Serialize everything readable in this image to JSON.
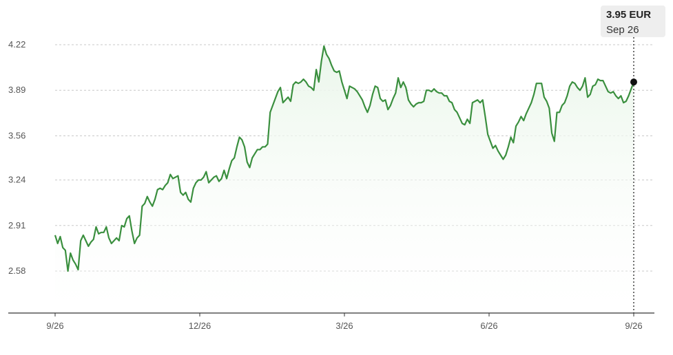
{
  "chart_data": {
    "type": "area",
    "title": "",
    "xlabel": "",
    "ylabel": "",
    "x_tick_labels": [
      "9/26",
      "12/26",
      "3/26",
      "6/26",
      "9/26"
    ],
    "y_tick_labels": [
      "2.58",
      "2.91",
      "3.24",
      "3.56",
      "3.89",
      "4.22"
    ],
    "ylim": [
      2.33,
      4.28
    ],
    "grid": "horizontal dashed",
    "series": [
      {
        "color": "#3a8f3e",
        "fill": "#eaf6ea",
        "values": [
          2.84,
          2.78,
          2.83,
          2.75,
          2.73,
          2.58,
          2.71,
          2.66,
          2.63,
          2.59,
          2.8,
          2.84,
          2.8,
          2.76,
          2.79,
          2.81,
          2.9,
          2.85,
          2.86,
          2.86,
          2.9,
          2.82,
          2.78,
          2.8,
          2.82,
          2.8,
          2.91,
          2.9,
          2.96,
          2.98,
          2.87,
          2.78,
          2.82,
          2.84,
          3.05,
          3.07,
          3.12,
          3.08,
          3.05,
          3.1,
          3.17,
          3.18,
          3.17,
          3.2,
          3.22,
          3.28,
          3.25,
          3.26,
          3.27,
          3.15,
          3.13,
          3.15,
          3.1,
          3.08,
          3.18,
          3.22,
          3.24,
          3.24,
          3.26,
          3.3,
          3.22,
          3.24,
          3.26,
          3.27,
          3.23,
          3.25,
          3.31,
          3.25,
          3.32,
          3.38,
          3.4,
          3.48,
          3.55,
          3.53,
          3.48,
          3.37,
          3.33,
          3.4,
          3.43,
          3.46,
          3.46,
          3.48,
          3.48,
          3.5,
          3.73,
          3.78,
          3.83,
          3.88,
          3.91,
          3.8,
          3.82,
          3.84,
          3.81,
          3.93,
          3.95,
          3.94,
          3.95,
          3.97,
          3.95,
          3.92,
          3.91,
          3.89,
          4.04,
          3.95,
          4.1,
          4.21,
          4.15,
          4.12,
          4.07,
          4.03,
          4.02,
          4.03,
          3.95,
          3.89,
          3.83,
          3.92,
          3.91,
          3.9,
          3.88,
          3.85,
          3.82,
          3.77,
          3.73,
          3.78,
          3.86,
          3.92,
          3.91,
          3.83,
          3.81,
          3.82,
          3.75,
          3.78,
          3.83,
          3.87,
          3.98,
          3.91,
          3.95,
          3.91,
          3.82,
          3.79,
          3.77,
          3.79,
          3.8,
          3.8,
          3.81,
          3.89,
          3.89,
          3.88,
          3.9,
          3.88,
          3.87,
          3.87,
          3.85,
          3.85,
          3.81,
          3.8,
          3.75,
          3.73,
          3.69,
          3.65,
          3.64,
          3.68,
          3.65,
          3.8,
          3.81,
          3.82,
          3.8,
          3.82,
          3.7,
          3.57,
          3.52,
          3.47,
          3.49,
          3.45,
          3.42,
          3.39,
          3.42,
          3.48,
          3.55,
          3.51,
          3.63,
          3.66,
          3.7,
          3.67,
          3.72,
          3.76,
          3.8,
          3.86,
          3.94,
          3.94,
          3.94,
          3.84,
          3.81,
          3.76,
          3.58,
          3.52,
          3.73,
          3.73,
          3.78,
          3.8,
          3.85,
          3.92,
          3.95,
          3.94,
          3.91,
          3.89,
          3.92,
          3.98,
          3.84,
          3.86,
          3.92,
          3.93,
          3.97,
          3.96,
          3.96,
          3.92,
          3.88,
          3.87,
          3.88,
          3.85,
          3.83,
          3.85,
          3.8,
          3.81,
          3.85,
          3.9,
          3.95
        ]
      }
    ],
    "highlight": {
      "value_label": "3.95 EUR",
      "date_label": "Sep 26",
      "value": 3.95
    }
  },
  "colors": {
    "line": "#3a8f3e",
    "fill": "#eaf6ea",
    "grid": "#c8c8c8",
    "axis": "#333333",
    "marker": "#111111"
  }
}
